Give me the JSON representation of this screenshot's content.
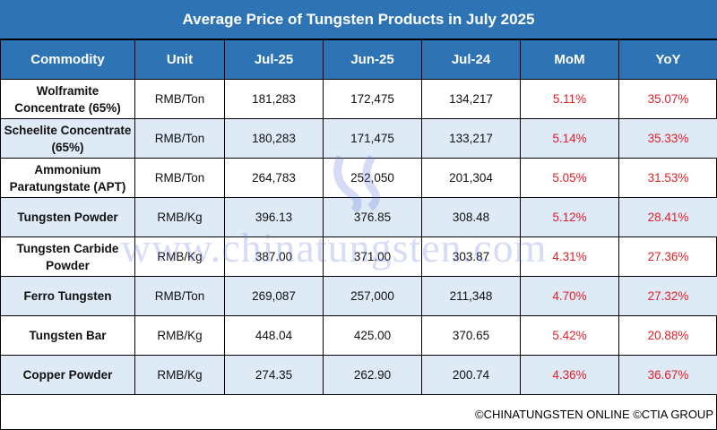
{
  "title": "Average Price of Tungsten Products in July 2025",
  "columns": [
    "Commodity",
    "Unit",
    "Jul-25",
    "Jun-25",
    "Jul-24",
    "MoM",
    "YoY"
  ],
  "rows": [
    {
      "commodity": "Wolframite Concentrate (65%)",
      "unit": "RMB/Ton",
      "jul25": "181,283",
      "jun25": "172,475",
      "jul24": "134,217",
      "mom": "5.11%",
      "yoy": "35.07%"
    },
    {
      "commodity": "Scheelite Concentrate (65%)",
      "unit": "RMB/Ton",
      "jul25": "180,283",
      "jun25": "171,475",
      "jul24": "133,217",
      "mom": "5.14%",
      "yoy": "35.33%"
    },
    {
      "commodity": "Ammonium Paratungstate (APT)",
      "unit": "RMB/Ton",
      "jul25": "264,783",
      "jun25": "252,050",
      "jul24": "201,304",
      "mom": "5.05%",
      "yoy": "31.53%"
    },
    {
      "commodity": "Tungsten Powder",
      "unit": "RMB/Kg",
      "jul25": "396.13",
      "jun25": "376.85",
      "jul24": "308.48",
      "mom": "5.12%",
      "yoy": "28.41%"
    },
    {
      "commodity": "Tungsten Carbide Powder",
      "unit": "RMB/Kg",
      "jul25": "387.00",
      "jun25": "371.00",
      "jul24": "303.87",
      "mom": "4.31%",
      "yoy": "27.36%"
    },
    {
      "commodity": "Ferro Tungsten",
      "unit": "RMB/Ton",
      "jul25": "269,087",
      "jun25": "257,000",
      "jul24": "211,348",
      "mom": "4.70%",
      "yoy": "27.32%"
    },
    {
      "commodity": "Tungsten Bar",
      "unit": "RMB/Kg",
      "jul25": "448.04",
      "jun25": "425.00",
      "jul24": "370.65",
      "mom": "5.42%",
      "yoy": "20.88%"
    },
    {
      "commodity": "Copper Powder",
      "unit": "RMB/Kg",
      "jul25": "274.35",
      "jun25": "262.90",
      "jul24": "200.74",
      "mom": "4.36%",
      "yoy": "36.67%"
    }
  ],
  "footer": "©CHINATUNGSTEN ONLINE ©CTIA GROUP",
  "watermark": "www.chinatungsten.com",
  "watermark_logo": "CTOMS",
  "colors": {
    "header": "#2e74b5",
    "alt_row": "#deeaf6",
    "percent": "#e0202a"
  }
}
